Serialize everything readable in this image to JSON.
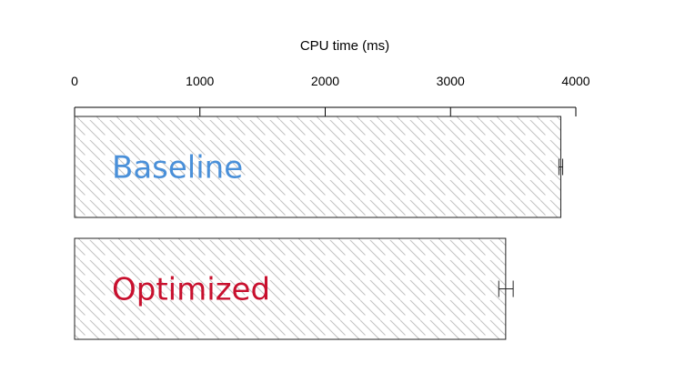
{
  "chart_data": {
    "type": "bar",
    "orientation": "horizontal",
    "xlabel": "CPU time (ms)",
    "xlim": [
      0,
      4000
    ],
    "xticks": [
      0,
      1000,
      2000,
      3000,
      4000
    ],
    "axis_position": "top",
    "grid": false,
    "bar_pattern": "diagonal-hatch",
    "categories": [
      "Baseline",
      "Optimized"
    ],
    "values": [
      3880,
      3440
    ],
    "error_low": [
      3865,
      3385
    ],
    "error_high": [
      3895,
      3500
    ],
    "label_colors": [
      "#4a90d9",
      "#c8102e"
    ]
  }
}
